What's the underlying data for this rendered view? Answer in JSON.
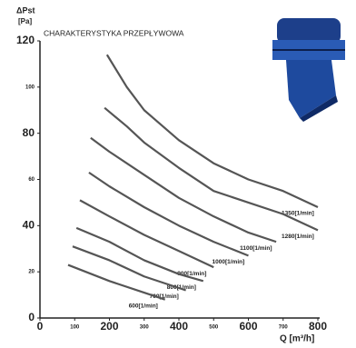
{
  "chart_data": {
    "type": "line",
    "title": "CHARAKTERYSTYKA PRZEPŁYWOWA",
    "y_label": "ΔPst",
    "y_unit": "[Pa]",
    "x_label": "Q [m³/h]",
    "xlim": [
      0,
      800
    ],
    "xticks": [
      0,
      100,
      200,
      300,
      400,
      500,
      600,
      700,
      800
    ],
    "ylim": [
      0,
      120
    ],
    "yticks": [
      0,
      20,
      40,
      60,
      80,
      100,
      120
    ],
    "series": [
      {
        "name": "1350[1/min]",
        "color": "#555555",
        "x": [
          193,
          250,
          300,
          400,
          500,
          600,
          700,
          800
        ],
        "values": [
          114,
          100,
          90,
          77,
          67,
          60,
          55,
          48
        ]
      },
      {
        "name": "1280[1/min]",
        "color": "#555555",
        "x": [
          186,
          250,
          300,
          400,
          500,
          600,
          700,
          800
        ],
        "values": [
          91,
          83,
          76,
          65,
          55,
          50,
          45,
          38
        ]
      },
      {
        "name": "1100[1/min]",
        "color": "#555555",
        "x": [
          146,
          200,
          300,
          400,
          500,
          600,
          680
        ],
        "values": [
          78,
          72,
          62,
          52,
          44,
          37,
          33
        ]
      },
      {
        "name": "1000[1/min]",
        "color": "#555555",
        "x": [
          141,
          200,
          300,
          400,
          500,
          600
        ],
        "values": [
          63,
          57,
          48,
          40,
          33,
          27
        ]
      },
      {
        "name": "900[1/min]",
        "color": "#555555",
        "x": [
          115,
          200,
          300,
          400,
          500
        ],
        "values": [
          51,
          44,
          36,
          29,
          22
        ]
      },
      {
        "name": "800[1/min]",
        "color": "#555555",
        "x": [
          105,
          200,
          300,
          400,
          470
        ],
        "values": [
          39,
          33,
          25,
          19,
          16
        ]
      },
      {
        "name": "700[1/min]",
        "color": "#555555",
        "x": [
          94,
          200,
          300,
          420
        ],
        "values": [
          31,
          25,
          18,
          12
        ]
      },
      {
        "name": "600[1/min]",
        "color": "#555555",
        "x": [
          81,
          200,
          300,
          360
        ],
        "values": [
          23,
          16,
          11,
          8
        ]
      }
    ]
  }
}
